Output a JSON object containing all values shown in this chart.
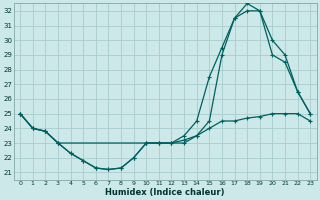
{
  "xlabel": "Humidex (Indice chaleur)",
  "bg_color": "#cce8e8",
  "grid_color": "#aacccc",
  "line_color": "#006060",
  "xlim": [
    -0.5,
    23.5
  ],
  "ylim": [
    20.5,
    32.5
  ],
  "xticks": [
    0,
    1,
    2,
    3,
    4,
    5,
    6,
    7,
    8,
    9,
    10,
    11,
    12,
    13,
    14,
    15,
    16,
    17,
    18,
    19,
    20,
    21,
    22,
    23
  ],
  "yticks": [
    21,
    22,
    23,
    24,
    25,
    26,
    27,
    28,
    29,
    30,
    31,
    32
  ],
  "line1_x": [
    0,
    1,
    2,
    3,
    4,
    5,
    6,
    7,
    8,
    9,
    10,
    11,
    12,
    13,
    14,
    15,
    16,
    17,
    18,
    19,
    20,
    21,
    22,
    23
  ],
  "line1_y": [
    25.0,
    24.0,
    23.8,
    23.0,
    22.3,
    21.8,
    21.3,
    21.2,
    21.3,
    22.0,
    23.0,
    23.0,
    23.0,
    23.5,
    24.5,
    27.5,
    29.5,
    31.5,
    32.5,
    32.0,
    30.0,
    29.0,
    26.5,
    25.0
  ],
  "line2_x": [
    0,
    1,
    2,
    3,
    10,
    11,
    12,
    13,
    14,
    15,
    16,
    17,
    18,
    19,
    20,
    21,
    22,
    23
  ],
  "line2_y": [
    25.0,
    24.0,
    23.8,
    23.0,
    23.0,
    23.0,
    23.0,
    23.0,
    23.5,
    24.5,
    29.0,
    31.5,
    32.0,
    32.0,
    29.0,
    28.5,
    26.5,
    25.0
  ],
  "line3_x": [
    0,
    1,
    2,
    3,
    4,
    5,
    6,
    7,
    8,
    9,
    10,
    11,
    12,
    13,
    14,
    15,
    16,
    17,
    18,
    19,
    20,
    21,
    22,
    23
  ],
  "line3_y": [
    25.0,
    24.0,
    23.8,
    23.0,
    22.3,
    21.8,
    21.3,
    21.2,
    21.3,
    22.0,
    23.0,
    23.0,
    23.0,
    23.2,
    23.5,
    24.0,
    24.5,
    24.5,
    24.7,
    24.8,
    25.0,
    25.0,
    25.0,
    24.5
  ]
}
